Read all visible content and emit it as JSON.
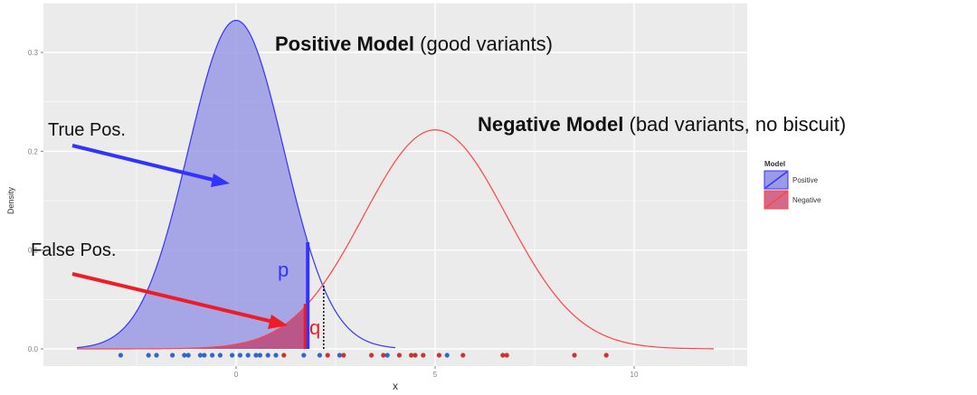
{
  "chart_data": {
    "type": "area",
    "title": "",
    "xlabel": "x",
    "ylabel": "Density",
    "xlim": [
      -4,
      12.5
    ],
    "ylim": [
      -0.012,
      0.345
    ],
    "x_ticks": [
      0,
      5,
      10
    ],
    "x_tick_labels": [
      "0",
      "5",
      "10"
    ],
    "y_ticks": [
      0.0,
      0.1,
      0.2,
      0.3
    ],
    "y_tick_labels": [
      "0.0",
      "0.1",
      "0.2",
      "0.3"
    ],
    "grid": true,
    "legend": {
      "title": "Model",
      "placement": "right",
      "entries": [
        {
          "label": "Positive",
          "color": "#3333ff",
          "fill": "#9a9ae6"
        },
        {
          "label": "Negative",
          "color": "#ff4444",
          "fill": "#d36a8c"
        }
      ]
    },
    "series": [
      {
        "name": "Positive",
        "distribution": "normal",
        "mean": 0,
        "sd": 1.2,
        "x_range": [
          -4,
          4
        ],
        "line_color": "#3333ff",
        "fill_color": "#9a9ae6",
        "fill_to_x": 1.8
      },
      {
        "name": "Negative",
        "distribution": "normal",
        "mean": 5,
        "sd": 1.8,
        "x_range": [
          -4,
          12
        ],
        "line_color": "#ff4444",
        "fill_color": "#c23b6a",
        "fill_to_x": 1.8
      }
    ],
    "threshold_x": 1.8,
    "dotted_line_x": 2.2,
    "rug_points": [
      {
        "x": -2.9,
        "color": "#3366cc"
      },
      {
        "x": -2.2,
        "color": "#3366cc"
      },
      {
        "x": -2.0,
        "color": "#3366cc"
      },
      {
        "x": -1.6,
        "color": "#3366cc"
      },
      {
        "x": -1.3,
        "color": "#3366cc"
      },
      {
        "x": -1.2,
        "color": "#3366cc"
      },
      {
        "x": -0.9,
        "color": "#3366cc"
      },
      {
        "x": -0.8,
        "color": "#3366cc"
      },
      {
        "x": -0.6,
        "color": "#3366cc"
      },
      {
        "x": -0.4,
        "color": "#3366cc"
      },
      {
        "x": -0.1,
        "color": "#3366cc"
      },
      {
        "x": 0.1,
        "color": "#3366cc"
      },
      {
        "x": 0.3,
        "color": "#3366cc"
      },
      {
        "x": 0.5,
        "color": "#3366cc"
      },
      {
        "x": 0.6,
        "color": "#3366cc"
      },
      {
        "x": 0.8,
        "color": "#3366cc"
      },
      {
        "x": 1.0,
        "color": "#3366cc"
      },
      {
        "x": 1.2,
        "color": "#cc3333"
      },
      {
        "x": 1.7,
        "color": "#3366cc"
      },
      {
        "x": 2.1,
        "color": "#3366cc"
      },
      {
        "x": 2.3,
        "color": "#cc3333"
      },
      {
        "x": 2.6,
        "color": "#3366cc"
      },
      {
        "x": 2.7,
        "color": "#cc3333"
      },
      {
        "x": 3.4,
        "color": "#cc3333"
      },
      {
        "x": 3.7,
        "color": "#cc3333"
      },
      {
        "x": 3.8,
        "color": "#3366cc"
      },
      {
        "x": 4.1,
        "color": "#cc3333"
      },
      {
        "x": 4.4,
        "color": "#cc3333"
      },
      {
        "x": 4.5,
        "color": "#cc3333"
      },
      {
        "x": 4.7,
        "color": "#cc3333"
      },
      {
        "x": 5.1,
        "color": "#cc3333"
      },
      {
        "x": 5.3,
        "color": "#3366cc"
      },
      {
        "x": 5.7,
        "color": "#cc3333"
      },
      {
        "x": 6.7,
        "color": "#cc3333"
      },
      {
        "x": 6.8,
        "color": "#cc3333"
      },
      {
        "x": 8.5,
        "color": "#cc3333"
      },
      {
        "x": 9.3,
        "color": "#cc3333"
      }
    ],
    "annotations": {
      "positive_model_bold": "Positive Model",
      "positive_model_rest": " (good variants)",
      "negative_model_bold": "Negative Model",
      "negative_model_rest": " (bad variants, no biscuit)",
      "true_pos": "True Pos.",
      "false_pos": "False Pos.",
      "p_label": "p",
      "q_label": "q"
    }
  }
}
